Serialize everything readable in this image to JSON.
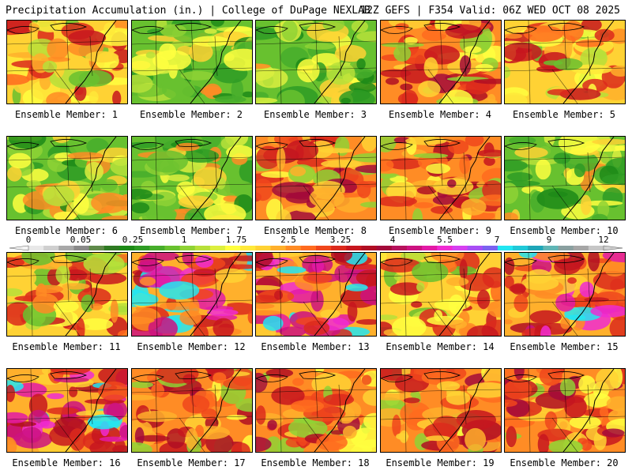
{
  "header": {
    "left": "Precipitation Accumulation (in.) | College of DuPage NEXLAB",
    "right": "12Z GEFS | F354 Valid: 06Z WED OCT 08 2025"
  },
  "legend": {
    "ticks": [
      "0",
      "0.05",
      "0.25",
      "1",
      "1.75",
      "2.5",
      "3.25",
      "4",
      "5.5",
      "7",
      "9",
      "12"
    ],
    "colors": [
      "#e8e8e8",
      "#cfcfcf",
      "#a8a8a8",
      "#8a8a8a",
      "#5f8a4a",
      "#2f7a23",
      "#1d8a17",
      "#2e9b24",
      "#46ad2b",
      "#68c12f",
      "#8fd235",
      "#b7e03a",
      "#dcef3f",
      "#ffff3f",
      "#ffe93a",
      "#ffd234",
      "#ffb02c",
      "#ff8c25",
      "#ff6b1f",
      "#f0461c",
      "#dc2a1c",
      "#c7161e",
      "#b00e23",
      "#a30a3a",
      "#b6125c",
      "#cc1280",
      "#e31aa6",
      "#f02cd2",
      "#d640f0",
      "#a84ef5",
      "#7b62f0",
      "#22e6f2",
      "#20c9d8",
      "#1ea6b8",
      "#5fb6b6",
      "#8aa0a0",
      "#a6a6a6",
      "#c6c6c6"
    ]
  },
  "panels": [
    {
      "label": "Ensemble Member: 1",
      "scheme": "orange"
    },
    {
      "label": "Ensemble Member: 2",
      "scheme": "green"
    },
    {
      "label": "Ensemble Member: 3",
      "scheme": "green"
    },
    {
      "label": "Ensemble Member: 4",
      "scheme": "red"
    },
    {
      "label": "Ensemble Member: 5",
      "scheme": "orange"
    },
    {
      "label": "Ensemble Member: 6",
      "scheme": "green"
    },
    {
      "label": "Ensemble Member: 7",
      "scheme": "green"
    },
    {
      "label": "Ensemble Member: 8",
      "scheme": "red"
    },
    {
      "label": "Ensemble Member: 9",
      "scheme": "red"
    },
    {
      "label": "Ensemble Member: 10",
      "scheme": "green"
    },
    {
      "label": "Ensemble Member: 11",
      "scheme": "orange"
    },
    {
      "label": "Ensemble Member: 12",
      "scheme": "magenta"
    },
    {
      "label": "Ensemble Member: 13",
      "scheme": "magenta"
    },
    {
      "label": "Ensemble Member: 14",
      "scheme": "orange"
    },
    {
      "label": "Ensemble Member: 15",
      "scheme": "magenta"
    },
    {
      "label": "Ensemble Member: 16",
      "scheme": "magenta"
    },
    {
      "label": "Ensemble Member: 17",
      "scheme": "red"
    },
    {
      "label": "Ensemble Member: 18",
      "scheme": "red"
    },
    {
      "label": "Ensemble Member: 19",
      "scheme": "red"
    },
    {
      "label": "Ensemble Member: 20",
      "scheme": "red"
    }
  ]
}
